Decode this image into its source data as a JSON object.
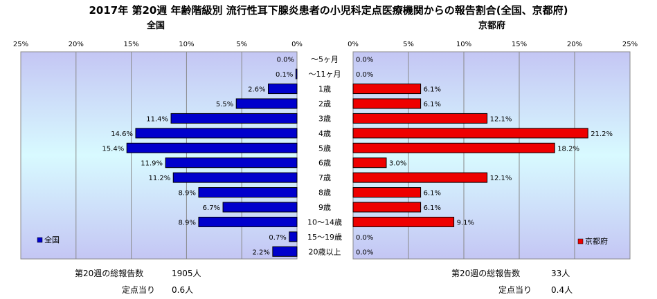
{
  "title": "2017年 第20週 年齢階級別 流行性耳下腺炎患者の小児科定点医療機関からの報告割合(全国、京都府)",
  "categories": [
    "～5ヶ月",
    "～11ヶ月",
    "1歳",
    "2歳",
    "3歳",
    "4歳",
    "5歳",
    "6歳",
    "7歳",
    "8歳",
    "9歳",
    "10～14歳",
    "15～19歳",
    "20歳以上"
  ],
  "chart_data": [
    {
      "type": "bar",
      "title": "全国",
      "orientation": "horizontal-reversed",
      "categories": [
        "～5ヶ月",
        "～11ヶ月",
        "1歳",
        "2歳",
        "3歳",
        "4歳",
        "5歳",
        "6歳",
        "7歳",
        "8歳",
        "9歳",
        "10～14歳",
        "15～19歳",
        "20歳以上"
      ],
      "series": [
        {
          "name": "全国",
          "values": [
            0.0,
            0.1,
            2.6,
            5.5,
            11.4,
            14.6,
            15.4,
            11.9,
            11.2,
            8.9,
            6.7,
            8.9,
            0.7,
            2.2
          ]
        }
      ],
      "data_labels": [
        "0.0%",
        "0.1%",
        "2.6%",
        "5.5%",
        "11.4%",
        "14.6%",
        "15.4%",
        "11.9%",
        "11.2%",
        "8.9%",
        "6.7%",
        "8.9%",
        "0.7%",
        "2.2%"
      ],
      "xlim": [
        0,
        25
      ],
      "xticks": [
        "25%",
        "20%",
        "15%",
        "10%",
        "5%",
        "0%"
      ],
      "legend": "bottom-left",
      "grid": true,
      "color": "#0000cc"
    },
    {
      "type": "bar",
      "title": "京都府",
      "orientation": "horizontal",
      "categories": [
        "～5ヶ月",
        "～11ヶ月",
        "1歳",
        "2歳",
        "3歳",
        "4歳",
        "5歳",
        "6歳",
        "7歳",
        "8歳",
        "9歳",
        "10～14歳",
        "15～19歳",
        "20歳以上"
      ],
      "series": [
        {
          "name": "京都府",
          "values": [
            0.0,
            0.0,
            6.1,
            6.1,
            12.1,
            21.2,
            18.2,
            3.0,
            12.1,
            6.1,
            6.1,
            9.1,
            0.0,
            0.0
          ]
        }
      ],
      "data_labels": [
        "0.0%",
        "0.0%",
        "6.1%",
        "6.1%",
        "12.1%",
        "21.2%",
        "18.2%",
        "3.0%",
        "12.1%",
        "6.1%",
        "6.1%",
        "9.1%",
        "0.0%",
        "0.0%"
      ],
      "xlim": [
        0,
        25
      ],
      "xticks": [
        "0%",
        "5%",
        "10%",
        "15%",
        "20%",
        "25%"
      ],
      "legend": "bottom-right",
      "grid": true,
      "color": "#ee0000"
    }
  ],
  "footer": {
    "left": {
      "total_label": "第20週の総報告数",
      "total_value": "1905人",
      "per_label": "定点当り",
      "per_value": "0.6人"
    },
    "right": {
      "total_label": "第20週の総報告数",
      "total_value": "33人",
      "per_label": "定点当り",
      "per_value": "0.4人"
    }
  }
}
